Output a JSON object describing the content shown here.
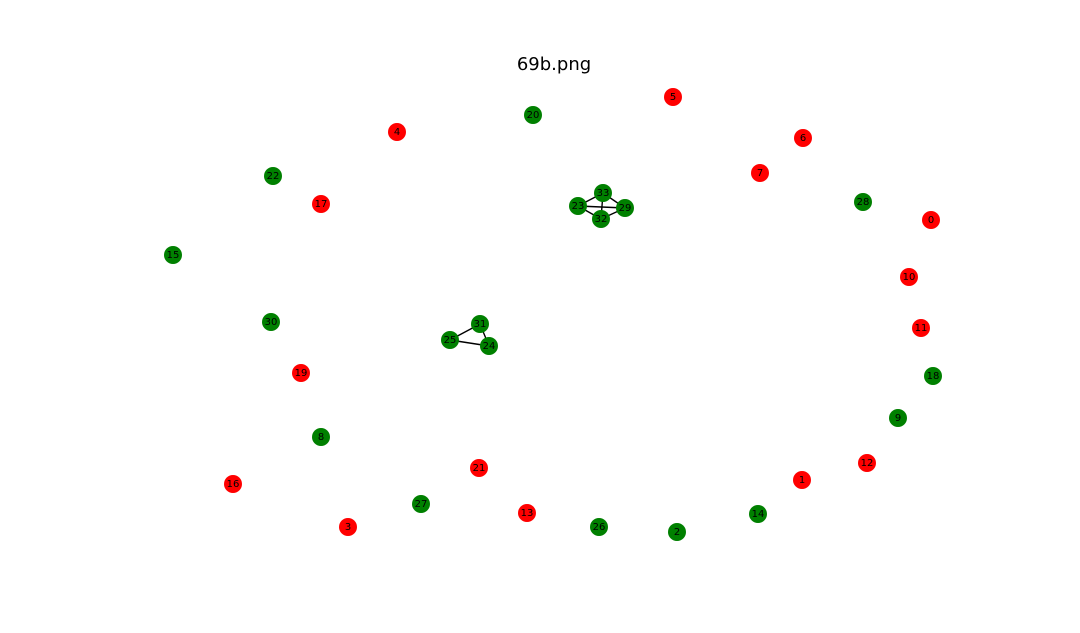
{
  "title": "69b.png",
  "colors": {
    "red": "#ff0000",
    "green": "#008000",
    "edge": "#000000"
  },
  "graph": {
    "nodes": [
      {
        "id": "0",
        "color": "red"
      },
      {
        "id": "1",
        "color": "red"
      },
      {
        "id": "2",
        "color": "green"
      },
      {
        "id": "3",
        "color": "red"
      },
      {
        "id": "4",
        "color": "red"
      },
      {
        "id": "5",
        "color": "red"
      },
      {
        "id": "6",
        "color": "red"
      },
      {
        "id": "7",
        "color": "red"
      },
      {
        "id": "8",
        "color": "green"
      },
      {
        "id": "9",
        "color": "green"
      },
      {
        "id": "10",
        "color": "red"
      },
      {
        "id": "11",
        "color": "red"
      },
      {
        "id": "12",
        "color": "red"
      },
      {
        "id": "13",
        "color": "red"
      },
      {
        "id": "14",
        "color": "green"
      },
      {
        "id": "15",
        "color": "green"
      },
      {
        "id": "16",
        "color": "red"
      },
      {
        "id": "17",
        "color": "red"
      },
      {
        "id": "18",
        "color": "green"
      },
      {
        "id": "19",
        "color": "red"
      },
      {
        "id": "20",
        "color": "green"
      },
      {
        "id": "21",
        "color": "red"
      },
      {
        "id": "22",
        "color": "green"
      },
      {
        "id": "23",
        "color": "green"
      },
      {
        "id": "24",
        "color": "green"
      },
      {
        "id": "25",
        "color": "green"
      },
      {
        "id": "26",
        "color": "green"
      },
      {
        "id": "27",
        "color": "green"
      },
      {
        "id": "28",
        "color": "green"
      },
      {
        "id": "29",
        "color": "green"
      },
      {
        "id": "30",
        "color": "green"
      },
      {
        "id": "31",
        "color": "green"
      },
      {
        "id": "32",
        "color": "green"
      },
      {
        "id": "33",
        "color": "green"
      }
    ],
    "edges": [
      [
        "23",
        "33"
      ],
      [
        "23",
        "29"
      ],
      [
        "23",
        "32"
      ],
      [
        "33",
        "29"
      ],
      [
        "33",
        "32"
      ],
      [
        "29",
        "32"
      ],
      [
        "25",
        "31"
      ],
      [
        "25",
        "24"
      ],
      [
        "31",
        "24"
      ]
    ]
  }
}
